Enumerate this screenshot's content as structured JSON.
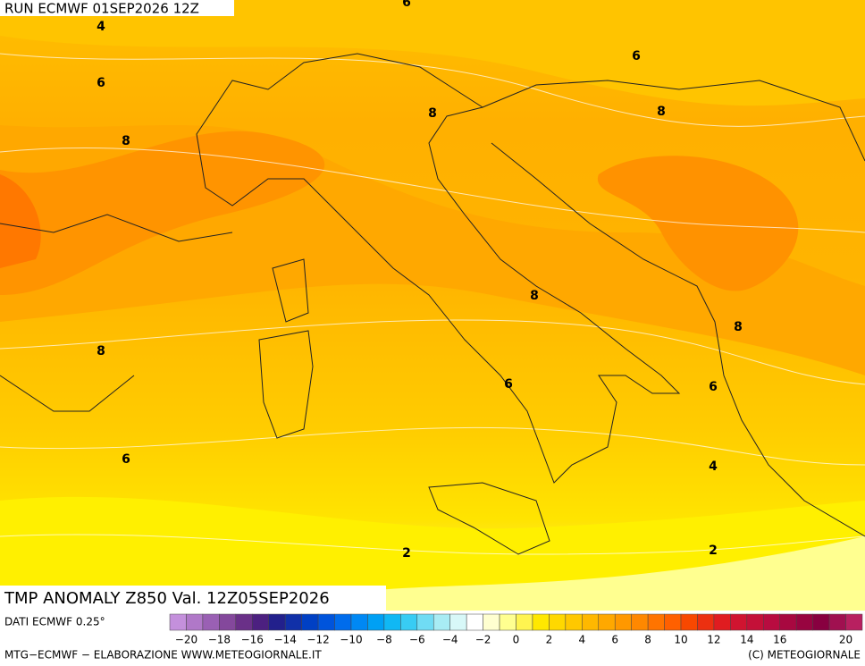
{
  "header": {
    "run": "RUN ECMWF 01SEP2026 12Z"
  },
  "title": "TMP ANOMALY Z850 Val. 12Z05SEP2026",
  "source": "DATI ECMWF 0.25°",
  "contour_labels": [
    "4",
    "6",
    "8",
    "6",
    "6",
    "8",
    "8",
    "8",
    "8",
    "8",
    "6",
    "6",
    "6",
    "4",
    "2",
    "2"
  ],
  "colorbar": {
    "labels": [
      "−20",
      "−18",
      "−16",
      "−14",
      "−12",
      "−10",
      "−8",
      "−6",
      "−4",
      "−2",
      "0",
      "2",
      "4",
      "6",
      "8",
      "10",
      "12",
      "14",
      "16",
      "20"
    ],
    "colors": [
      "#c490dc",
      "#b078c8",
      "#9a60b4",
      "#84489c",
      "#6a3088",
      "#4c2080",
      "#22208c",
      "#1030a8",
      "#0040c4",
      "#0054dc",
      "#006cec",
      "#0088f4",
      "#00a0f4",
      "#10b8f4",
      "#38ccf4",
      "#70dcf4",
      "#a8ecf4",
      "#d8f8f8",
      "#ffffff",
      "#ffffd0",
      "#ffff90",
      "#fff450",
      "#ffe800",
      "#ffd800",
      "#ffc800",
      "#ffb800",
      "#ffa800",
      "#ff9800",
      "#ff8800",
      "#ff7400",
      "#ff6000",
      "#f84800",
      "#ec3010",
      "#e01c20",
      "#d01430",
      "#c41038",
      "#b80c40",
      "#a80840",
      "#980440",
      "#880040",
      "#a01050",
      "#b82060"
    ]
  },
  "footer": {
    "left": "MTG−ECMWF − ELABORAZIONE WWW.METEOGIORNALE.IT",
    "right": "(C) METEOGIORNALE"
  }
}
